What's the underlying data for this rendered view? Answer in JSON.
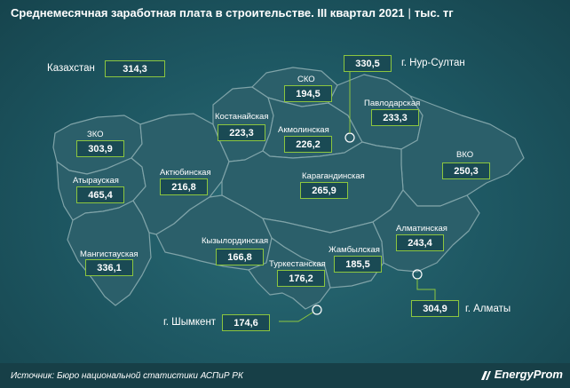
{
  "title": {
    "main": "Среднемесячная заработная плата в строительстве. III квартал 2021",
    "unit": "тыс. тг"
  },
  "colors": {
    "region_fill": "#2b5f6a",
    "region_border": "#7fa3a8",
    "accent": "#8cc63f"
  },
  "regions": {
    "kazakhstan": {
      "label": "Казахстан",
      "value": "314,3"
    },
    "nur_sultan": {
      "label": "г. Нур-Султан",
      "value": "330,5"
    },
    "sko": {
      "label": "СКО",
      "value": "194,5"
    },
    "pavlodar": {
      "label": "Павлодарская",
      "value": "233,3"
    },
    "kostanay": {
      "label": "Костанайская",
      "value": "223,3"
    },
    "akmola": {
      "label": "Акмолинская",
      "value": "226,2"
    },
    "zko": {
      "label": "ЗКО",
      "value": "303,9"
    },
    "vko": {
      "label": "ВКО",
      "value": "250,3"
    },
    "aktobe": {
      "label": "Актюбинская",
      "value": "216,8"
    },
    "karaganda": {
      "label": "Карагандинская",
      "value": "265,9"
    },
    "atyrau": {
      "label": "Атырауская",
      "value": "465,4"
    },
    "almaty_region": {
      "label": "Алматинская",
      "value": "243,4"
    },
    "kyzylorda": {
      "label": "Кызылординская",
      "value": "166,8"
    },
    "zhambyl": {
      "label": "Жамбылская",
      "value": "185,5"
    },
    "mangistau": {
      "label": "Мангистауская",
      "value": "336,1"
    },
    "turkestan": {
      "label": "Туркестанская",
      "value": "176,2"
    },
    "almaty_city": {
      "label": "г. Алматы",
      "value": "304,9"
    },
    "shymkent": {
      "label": "г. Шымкент",
      "value": "174,6"
    }
  },
  "footer": {
    "source": "Источник: Бюро национальной статистики АСПиР РК",
    "logo": "EnergyProm"
  }
}
